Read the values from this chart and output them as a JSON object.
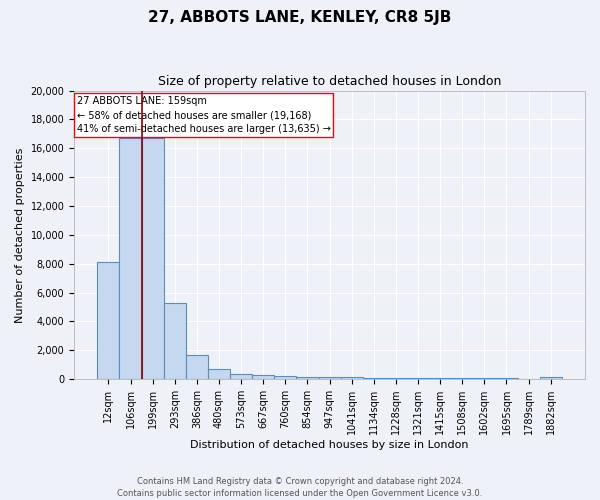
{
  "title": "27, ABBOTS LANE, KENLEY, CR8 5JB",
  "subtitle": "Size of property relative to detached houses in London",
  "xlabel": "Distribution of detached houses by size in London",
  "ylabel": "Number of detached properties",
  "categories": [
    "12sqm",
    "106sqm",
    "199sqm",
    "293sqm",
    "386sqm",
    "480sqm",
    "573sqm",
    "667sqm",
    "760sqm",
    "854sqm",
    "947sqm",
    "1041sqm",
    "1134sqm",
    "1228sqm",
    "1321sqm",
    "1415sqm",
    "1508sqm",
    "1602sqm",
    "1695sqm",
    "1789sqm",
    "1882sqm"
  ],
  "values": [
    8100,
    16700,
    16700,
    5300,
    1700,
    700,
    350,
    300,
    200,
    175,
    150,
    130,
    110,
    100,
    90,
    80,
    70,
    60,
    55,
    50,
    150
  ],
  "bar_color": "#c5d8f0",
  "bar_edge_color": "#5b8db8",
  "vline_color": "#8b0000",
  "vline_x_index": 1.5,
  "annotation_text": "27 ABBOTS LANE: 159sqm\n← 58% of detached houses are smaller (19,168)\n41% of semi-detached houses are larger (13,635) →",
  "annotation_box_color": "white",
  "annotation_box_edge": "red",
  "ylim": [
    0,
    20000
  ],
  "yticks": [
    0,
    2000,
    4000,
    6000,
    8000,
    10000,
    12000,
    14000,
    16000,
    18000,
    20000
  ],
  "background_color": "#eef2f8",
  "grid_color": "white",
  "footer": "Contains HM Land Registry data © Crown copyright and database right 2024.\nContains public sector information licensed under the Open Government Licence v3.0.",
  "title_fontsize": 11,
  "subtitle_fontsize": 9,
  "ylabel_fontsize": 8,
  "xlabel_fontsize": 8,
  "tick_fontsize": 7,
  "footer_fontsize": 6
}
